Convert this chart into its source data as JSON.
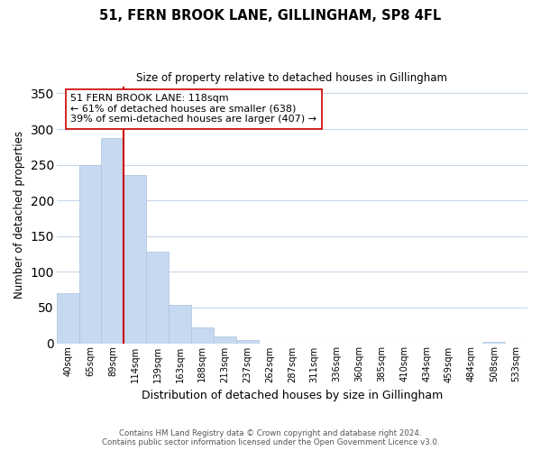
{
  "title": "51, FERN BROOK LANE, GILLINGHAM, SP8 4FL",
  "subtitle": "Size of property relative to detached houses in Gillingham",
  "xlabel": "Distribution of detached houses by size in Gillingham",
  "ylabel": "Number of detached properties",
  "bar_labels": [
    "40sqm",
    "65sqm",
    "89sqm",
    "114sqm",
    "139sqm",
    "163sqm",
    "188sqm",
    "213sqm",
    "237sqm",
    "262sqm",
    "287sqm",
    "311sqm",
    "336sqm",
    "360sqm",
    "385sqm",
    "410sqm",
    "434sqm",
    "459sqm",
    "484sqm",
    "508sqm",
    "533sqm"
  ],
  "bar_heights": [
    70,
    250,
    287,
    235,
    128,
    54,
    22,
    10,
    4,
    0,
    0,
    0,
    0,
    0,
    0,
    0,
    0,
    0,
    0,
    2,
    0
  ],
  "bar_color": "#c6d9f0",
  "bar_edge_color": "#a8c4e0",
  "vline_color": "#cc0000",
  "annotation_text": "51 FERN BROOK LANE: 118sqm\n← 61% of detached houses are smaller (638)\n39% of semi-detached houses are larger (407) →",
  "annotation_box_color": "#ffffff",
  "annotation_box_edge_color": "#cc0000",
  "ylim": [
    0,
    360
  ],
  "yticks": [
    0,
    50,
    100,
    150,
    200,
    250,
    300,
    350
  ],
  "background_color": "#ffffff",
  "grid_color": "#c8d8e8",
  "footer_line1": "Contains HM Land Registry data © Crown copyright and database right 2024.",
  "footer_line2": "Contains public sector information licensed under the Open Government Licence v3.0."
}
